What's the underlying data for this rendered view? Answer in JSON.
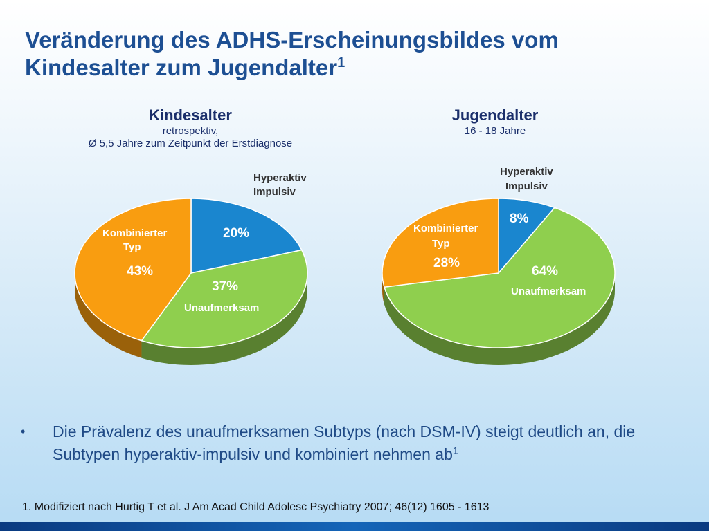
{
  "title": {
    "text": "Veränderung des ADHS-Erscheinungsbildes vom Kindesalter zum Jugendalter",
    "superscript": "1"
  },
  "chart_data": [
    {
      "type": "pie",
      "title": "Kindesalter",
      "subtitle": [
        "retrospektiv,",
        "Ø 5,5 Jahre zum  Zeitpunkt der Erstdiagnose"
      ],
      "slices": [
        {
          "label": "Hyperaktiv Impulsiv",
          "value": 20,
          "display": "20%",
          "color": "#1a86cf"
        },
        {
          "label": "Unaufmerksam",
          "value": 37,
          "display": "37%",
          "color": "#8fcf4e"
        },
        {
          "label": "Kombinierter Typ",
          "value": 43,
          "display": "43%",
          "color": "#f99d10"
        }
      ]
    },
    {
      "type": "pie",
      "title": "Jugendalter",
      "subtitle": [
        "16 - 18 Jahre"
      ],
      "slices": [
        {
          "label": "Hyperaktiv Impulsiv",
          "value": 8,
          "display": "8%",
          "color": "#1a86cf"
        },
        {
          "label": "Unaufmerksam",
          "value": 64,
          "display": "64%",
          "color": "#8fcf4e"
        },
        {
          "label": "Kombinierter Typ",
          "value": 28,
          "display": "28%",
          "color": "#f99d10"
        }
      ]
    }
  ],
  "bullet": {
    "marker": "•",
    "text": "Die Prävalenz des unaufmerksamen Subtyps (nach DSM-IV) steigt deutlich an, die Subtypen hyperaktiv-impulsiv und kombiniert nehmen ab",
    "superscript": "1"
  },
  "footnote": "1. Modifiziert nach Hurtig T et al. J Am Acad Child Adolesc Psychiatry 2007; 46(12) 1605 - 1613"
}
